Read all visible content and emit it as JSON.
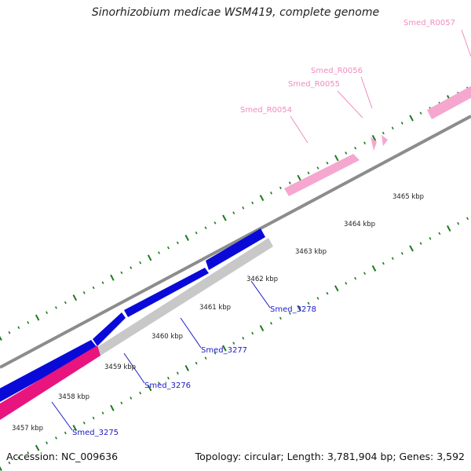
{
  "title": "Sinorhizobium medicae WSM419, complete genome",
  "footer": {
    "accession": "Accession: NC_009636",
    "topology": "Topology: circular; Length: 3,781,904 bp; Genes: 3,592"
  },
  "colors": {
    "backbone": "#8c8c8c",
    "tick": "#1e7a1e",
    "cds_blue": "#0a0ad8",
    "cds_grey": "#c8c8c8",
    "cds_magenta": "#e8157f",
    "rna_pink": "#f5a7cf",
    "gene_label_blue": "#1a1ac8",
    "rna_label_pink": "#f08cc0",
    "axis_label": "#222222"
  },
  "kbp_labels": [
    "3457 kbp",
    "3458 kbp",
    "3459 kbp",
    "3460 kbp",
    "3461 kbp",
    "3462 kbp",
    "3463 kbp",
    "3464 kbp",
    "3465 kbp"
  ],
  "gene_labels": [
    "Smed_3275",
    "Smed_3276",
    "Smed_3277",
    "Smed_3278"
  ],
  "rna_labels": [
    "Smed_R0054",
    "Smed_R0055",
    "Smed_R0056",
    "Smed_R0057"
  ]
}
